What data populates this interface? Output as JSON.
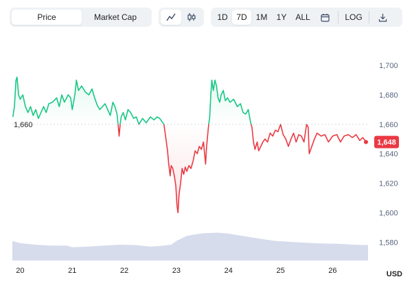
{
  "toolbar": {
    "metric_tabs": [
      {
        "label": "Price",
        "active": true
      },
      {
        "label": "Market Cap",
        "active": false
      }
    ],
    "chart_types": [
      {
        "icon": "line-chart-icon",
        "active": true
      },
      {
        "icon": "candlestick-icon",
        "active": false
      }
    ],
    "ranges": [
      {
        "label": "1D",
        "active": false
      },
      {
        "label": "7D",
        "active": true
      },
      {
        "label": "1M",
        "active": false
      },
      {
        "label": "1Y",
        "active": false
      },
      {
        "label": "ALL",
        "active": false
      }
    ],
    "calendar_icon": "calendar-icon",
    "log_label": "LOG",
    "download_icon": "download-icon"
  },
  "currency_label": "USD",
  "reference_label": "1,660",
  "current_price_label": "1,648",
  "colors": {
    "up": "#16c784",
    "down": "#ea3943",
    "volume": "#cfd6e8",
    "grid": "#eff2f5",
    "reference_line": "#d3d7de",
    "price_badge": "#ea3943"
  },
  "chart_data": {
    "type": "line",
    "x_ticks": [
      "20",
      "21",
      "22",
      "23",
      "24",
      "25",
      "26"
    ],
    "y_ticks": [
      "1,700",
      "1,680",
      "1,660",
      "1,640",
      "1,620",
      "1,600",
      "1,580"
    ],
    "ylim": [
      1575,
      1708
    ],
    "xlim": [
      19.85,
      26.68
    ],
    "reference_value": 1660,
    "current_value": 1648,
    "grid": false,
    "series": [
      {
        "values": [
          [
            19.86,
            1665
          ],
          [
            19.89,
            1672
          ],
          [
            19.92,
            1690
          ],
          [
            19.94,
            1692
          ],
          [
            19.97,
            1680
          ],
          [
            20.0,
            1677
          ],
          [
            20.05,
            1680
          ],
          [
            20.1,
            1672
          ],
          [
            20.15,
            1668
          ],
          [
            20.2,
            1672
          ],
          [
            20.25,
            1666
          ],
          [
            20.3,
            1670
          ],
          [
            20.35,
            1664
          ],
          [
            20.4,
            1668
          ],
          [
            20.45,
            1672
          ],
          [
            20.5,
            1668
          ],
          [
            20.55,
            1674
          ],
          [
            20.62,
            1675
          ],
          [
            20.7,
            1678
          ],
          [
            20.75,
            1672
          ],
          [
            20.8,
            1680
          ],
          [
            20.85,
            1675
          ],
          [
            20.92,
            1680
          ],
          [
            20.97,
            1678
          ],
          [
            21.0,
            1670
          ],
          [
            21.05,
            1680
          ],
          [
            21.08,
            1690
          ],
          [
            21.12,
            1683
          ],
          [
            21.18,
            1686
          ],
          [
            21.25,
            1682
          ],
          [
            21.32,
            1680
          ],
          [
            21.38,
            1684
          ],
          [
            21.43,
            1678
          ],
          [
            21.48,
            1673
          ],
          [
            21.53,
            1670
          ],
          [
            21.58,
            1672
          ],
          [
            21.63,
            1674
          ],
          [
            21.68,
            1670
          ],
          [
            21.73,
            1666
          ],
          [
            21.78,
            1675
          ],
          [
            21.82,
            1672
          ],
          [
            21.86,
            1667
          ],
          [
            21.88,
            1660
          ],
          [
            21.9,
            1652
          ],
          [
            21.92,
            1660
          ],
          [
            21.94,
            1665
          ],
          [
            21.98,
            1668
          ],
          [
            22.02,
            1663
          ],
          [
            22.07,
            1670
          ],
          [
            22.12,
            1668
          ],
          [
            22.18,
            1664
          ],
          [
            22.23,
            1665
          ],
          [
            22.28,
            1660
          ],
          [
            22.35,
            1664
          ],
          [
            22.42,
            1661
          ],
          [
            22.5,
            1665
          ],
          [
            22.57,
            1663
          ],
          [
            22.63,
            1665
          ],
          [
            22.68,
            1664
          ],
          [
            22.72,
            1662
          ],
          [
            22.76,
            1660
          ],
          [
            22.8,
            1650
          ],
          [
            22.83,
            1642
          ],
          [
            22.85,
            1634
          ],
          [
            22.88,
            1625
          ],
          [
            22.9,
            1632
          ],
          [
            22.93,
            1630
          ],
          [
            22.96,
            1625
          ],
          [
            22.99,
            1618
          ],
          [
            23.01,
            1605
          ],
          [
            23.03,
            1600
          ],
          [
            23.05,
            1612
          ],
          [
            23.08,
            1620
          ],
          [
            23.11,
            1630
          ],
          [
            23.14,
            1626
          ],
          [
            23.17,
            1631
          ],
          [
            23.2,
            1628
          ],
          [
            23.24,
            1632
          ],
          [
            23.28,
            1630
          ],
          [
            23.32,
            1635
          ],
          [
            23.36,
            1642
          ],
          [
            23.4,
            1640
          ],
          [
            23.44,
            1645
          ],
          [
            23.48,
            1643
          ],
          [
            23.52,
            1648
          ],
          [
            23.56,
            1633
          ],
          [
            23.58,
            1645
          ],
          [
            23.62,
            1660
          ],
          [
            23.64,
            1665
          ],
          [
            23.66,
            1680
          ],
          [
            23.68,
            1690
          ],
          [
            23.71,
            1683
          ],
          [
            23.74,
            1690
          ],
          [
            23.77,
            1686
          ],
          [
            23.8,
            1678
          ],
          [
            23.83,
            1675
          ],
          [
            23.86,
            1680
          ],
          [
            23.9,
            1683
          ],
          [
            23.94,
            1676
          ],
          [
            23.98,
            1678
          ],
          [
            24.03,
            1675
          ],
          [
            24.1,
            1677
          ],
          [
            24.17,
            1672
          ],
          [
            24.23,
            1674
          ],
          [
            24.28,
            1668
          ],
          [
            24.33,
            1667
          ],
          [
            24.38,
            1670
          ],
          [
            24.42,
            1662
          ],
          [
            24.45,
            1658
          ],
          [
            24.48,
            1648
          ],
          [
            24.51,
            1643
          ],
          [
            24.55,
            1648
          ],
          [
            24.58,
            1642
          ],
          [
            24.62,
            1645
          ],
          [
            24.66,
            1648
          ],
          [
            24.7,
            1650
          ],
          [
            24.75,
            1648
          ],
          [
            24.8,
            1654
          ],
          [
            24.85,
            1652
          ],
          [
            24.9,
            1656
          ],
          [
            24.95,
            1655
          ],
          [
            25.0,
            1660
          ],
          [
            25.05,
            1653
          ],
          [
            25.1,
            1650
          ],
          [
            25.15,
            1645
          ],
          [
            25.2,
            1650
          ],
          [
            25.25,
            1654
          ],
          [
            25.3,
            1648
          ],
          [
            25.35,
            1653
          ],
          [
            25.4,
            1652
          ],
          [
            25.45,
            1648
          ],
          [
            25.5,
            1660
          ],
          [
            25.53,
            1658
          ],
          [
            25.55,
            1640
          ],
          [
            25.6,
            1645
          ],
          [
            25.65,
            1650
          ],
          [
            25.7,
            1654
          ],
          [
            25.78,
            1652
          ],
          [
            25.85,
            1653
          ],
          [
            25.92,
            1648
          ],
          [
            26.0,
            1652
          ],
          [
            26.08,
            1653
          ],
          [
            26.15,
            1648
          ],
          [
            26.22,
            1652
          ],
          [
            26.3,
            1653
          ],
          [
            26.38,
            1651
          ],
          [
            26.45,
            1653
          ],
          [
            26.52,
            1649
          ],
          [
            26.58,
            1651
          ],
          [
            26.64,
            1648
          ]
        ]
      }
    ],
    "volume": [
      [
        19.85,
        0.62
      ],
      [
        20.0,
        0.55
      ],
      [
        20.3,
        0.5
      ],
      [
        20.6,
        0.47
      ],
      [
        20.9,
        0.47
      ],
      [
        21.0,
        0.42
      ],
      [
        21.3,
        0.44
      ],
      [
        21.6,
        0.47
      ],
      [
        21.9,
        0.5
      ],
      [
        22.2,
        0.49
      ],
      [
        22.5,
        0.44
      ],
      [
        22.7,
        0.46
      ],
      [
        22.9,
        0.5
      ],
      [
        23.0,
        0.62
      ],
      [
        23.2,
        0.78
      ],
      [
        23.5,
        0.86
      ],
      [
        23.8,
        0.88
      ],
      [
        24.0,
        0.85
      ],
      [
        24.3,
        0.77
      ],
      [
        24.6,
        0.69
      ],
      [
        24.9,
        0.62
      ],
      [
        25.2,
        0.59
      ],
      [
        25.5,
        0.56
      ],
      [
        25.8,
        0.54
      ],
      [
        26.1,
        0.53
      ],
      [
        26.4,
        0.5
      ],
      [
        26.68,
        0.49
      ]
    ]
  }
}
